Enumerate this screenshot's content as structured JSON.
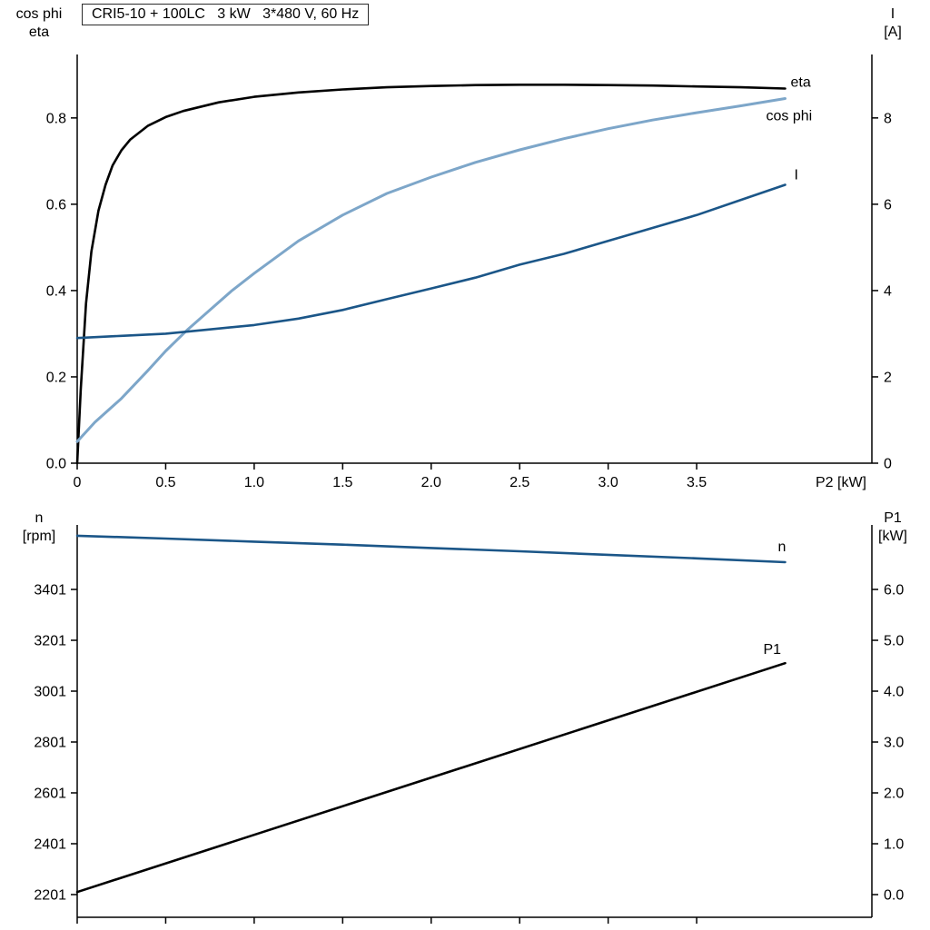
{
  "chart_data": [
    {
      "id": "power-panel",
      "type": "line",
      "title": "CRI5-10 + 100LC   3 kW   3*480 V, 60 Hz",
      "x_axis": {
        "label": "P2 [kW]",
        "min": 0,
        "max": 4.49,
        "tick_values": [
          0,
          0.5,
          1.0,
          1.5,
          2.0,
          2.5,
          3.0,
          3.5
        ],
        "tick_labels": [
          "0",
          "0.5",
          "1.0",
          "1.5",
          "2.0",
          "2.5",
          "3.0",
          "3.5"
        ]
      },
      "y_axis_left": {
        "corner_label": [
          "cos phi",
          "eta"
        ],
        "min": 0,
        "max": 0.947,
        "tick_values": [
          0.0,
          0.2,
          0.4,
          0.6,
          0.8
        ],
        "tick_labels": [
          "0.0",
          "0.2",
          "0.4",
          "0.6",
          "0.8"
        ]
      },
      "y_axis_right": {
        "corner_label": [
          "I",
          "[A]"
        ],
        "min": 0,
        "max": 9.47,
        "tick_values": [
          0,
          2,
          4,
          6,
          8
        ],
        "tick_labels": [
          "0",
          "2",
          "4",
          "6",
          "8"
        ]
      },
      "series": [
        {
          "name": "eta",
          "label": "eta",
          "color": "#000000",
          "width": 2.6,
          "axis": "left",
          "label_offset": [
            6,
            -2
          ],
          "x": [
            0,
            0.02,
            0.05,
            0.08,
            0.12,
            0.16,
            0.2,
            0.25,
            0.3,
            0.4,
            0.5,
            0.6,
            0.8,
            1.0,
            1.25,
            1.5,
            1.75,
            2.0,
            2.25,
            2.5,
            2.75,
            3.0,
            3.25,
            3.5,
            3.75,
            4.0
          ],
          "y": [
            0,
            0.17,
            0.37,
            0.49,
            0.585,
            0.645,
            0.69,
            0.725,
            0.75,
            0.782,
            0.802,
            0.816,
            0.836,
            0.849,
            0.859,
            0.866,
            0.871,
            0.874,
            0.876,
            0.877,
            0.877,
            0.876,
            0.875,
            0.873,
            0.871,
            0.868
          ]
        },
        {
          "name": "cos-phi",
          "label": "cos phi",
          "color": "#7da6c9",
          "width": 3,
          "axis": "left",
          "label_offset": [
            -21,
            24
          ],
          "x": [
            0,
            0.1,
            0.25,
            0.4,
            0.5,
            0.625,
            0.75,
            0.875,
            1.0,
            1.25,
            1.5,
            1.75,
            2.0,
            2.25,
            2.5,
            2.75,
            3.0,
            3.25,
            3.5,
            3.75,
            4.0
          ],
          "y": [
            0.05,
            0.095,
            0.15,
            0.215,
            0.26,
            0.31,
            0.355,
            0.4,
            0.44,
            0.515,
            0.575,
            0.625,
            0.663,
            0.697,
            0.726,
            0.752,
            0.775,
            0.795,
            0.812,
            0.828,
            0.845
          ]
        },
        {
          "name": "current",
          "label": "I",
          "color": "#1b5688",
          "width": 2.6,
          "axis": "right",
          "label_offset": [
            10,
            -6
          ],
          "x": [
            0,
            0.25,
            0.5,
            0.75,
            1.0,
            1.25,
            1.5,
            1.75,
            2.0,
            2.25,
            2.5,
            2.75,
            3.0,
            3.25,
            3.5,
            3.75,
            4.0
          ],
          "y": [
            2.9,
            2.95,
            3.0,
            3.1,
            3.2,
            3.35,
            3.55,
            3.8,
            4.05,
            4.3,
            4.6,
            4.85,
            5.15,
            5.45,
            5.75,
            6.1,
            6.45
          ]
        }
      ]
    },
    {
      "id": "speed-panel",
      "type": "line",
      "title": "",
      "x_axis": {
        "label": "",
        "min": 0,
        "max": 4.49,
        "tick_values": [
          0,
          0.5,
          1.0,
          1.5,
          2.0,
          2.5,
          3.0,
          3.5
        ],
        "tick_labels": []
      },
      "y_axis_left": {
        "corner_label": [
          "n",
          "[rpm]"
        ],
        "min": 2111.7,
        "max": 3654.6,
        "tick_values": [
          2201,
          2401,
          2601,
          2801,
          3001,
          3201,
          3401
        ],
        "tick_labels": [
          "2201",
          "2401",
          "2601",
          "2801",
          "3001",
          "3201",
          "3401"
        ]
      },
      "y_axis_right": {
        "corner_label": [
          "P1",
          "[kW]"
        ],
        "min": -0.446,
        "max": 7.268,
        "tick_values": [
          0.0,
          1.0,
          2.0,
          3.0,
          4.0,
          5.0,
          6.0
        ],
        "tick_labels": [
          "0.0",
          "1.0",
          "2.0",
          "3.0",
          "4.0",
          "5.0",
          "6.0"
        ]
      },
      "series": [
        {
          "name": "speed",
          "label": "n",
          "color": "#1b5688",
          "width": 2.6,
          "axis": "left",
          "label_offset": [
            -8,
            -12
          ],
          "x": [
            0,
            0.5,
            1.0,
            1.5,
            2.0,
            2.5,
            3.0,
            3.5,
            4.0
          ],
          "y": [
            3612,
            3601,
            3589,
            3577,
            3564,
            3551,
            3537,
            3523,
            3508
          ]
        },
        {
          "name": "input-power",
          "label": "P1",
          "color": "#000000",
          "width": 2.6,
          "axis": "right",
          "label_offset": [
            -24,
            -10
          ],
          "x": [
            0,
            4.0
          ],
          "y": [
            0.05,
            4.55
          ]
        }
      ]
    }
  ]
}
